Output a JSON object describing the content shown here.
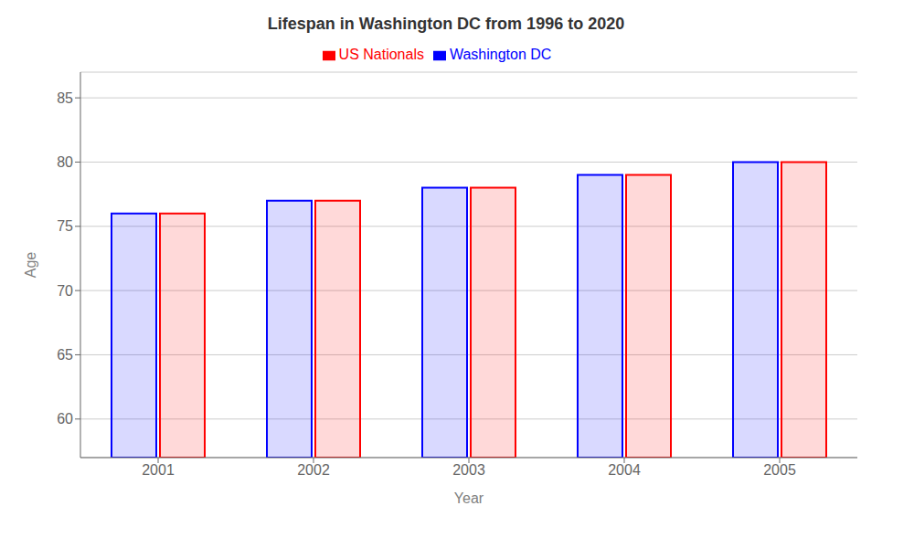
{
  "chart_data": {
    "type": "bar",
    "title": "Lifespan in Washington DC from 1996 to 2020",
    "x_label": "Year",
    "y_label": "Age",
    "categories": [
      "2001",
      "2002",
      "2003",
      "2004",
      "2005"
    ],
    "series": [
      {
        "name": "Washington DC",
        "color": "#0000ff",
        "values": [
          76,
          77,
          78,
          79,
          80
        ]
      },
      {
        "name": "US Nationals",
        "color": "#ff0000",
        "values": [
          76,
          77,
          78,
          79,
          80
        ]
      }
    ],
    "ylim": [
      57,
      87
    ],
    "yticks": [
      60,
      65,
      70,
      75,
      80,
      85
    ],
    "grid": true,
    "legend": "top"
  }
}
